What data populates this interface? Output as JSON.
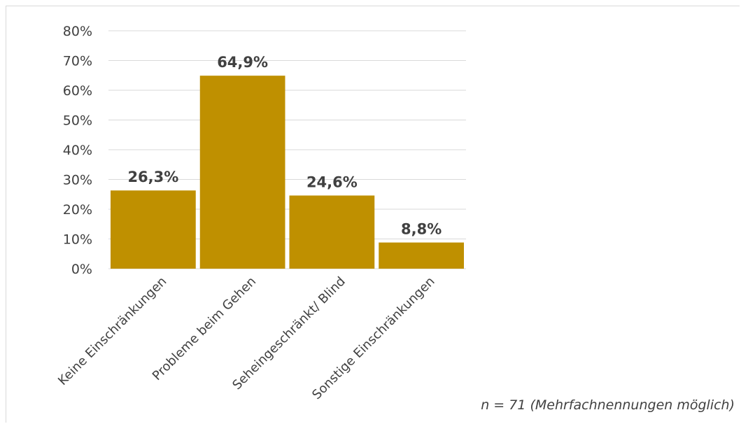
{
  "chart_data": {
    "type": "bar",
    "categories": [
      "Keine Einschränkungen",
      "Probleme beim Gehen",
      "Seheingeschränkt/ Blind",
      "Sonstige Einschränkungen"
    ],
    "values": [
      26.3,
      64.9,
      24.6,
      8.8
    ],
    "data_labels": [
      "26,3%",
      "64,9%",
      "24,6%",
      "8,8%"
    ],
    "ylim": [
      0,
      80
    ],
    "y_ticks": [
      0,
      10,
      20,
      30,
      40,
      50,
      60,
      70,
      80
    ],
    "y_tick_labels": [
      "0%",
      "10%",
      "20%",
      "30%",
      "40%",
      "50%",
      "60%",
      "70%",
      "80%"
    ],
    "grid": true,
    "bar_color": "#bf9000",
    "grid_color": "#d9d9d9",
    "text_color": "#404040"
  },
  "footnote": "n = 71 (Mehrfachnennungen möglich)"
}
